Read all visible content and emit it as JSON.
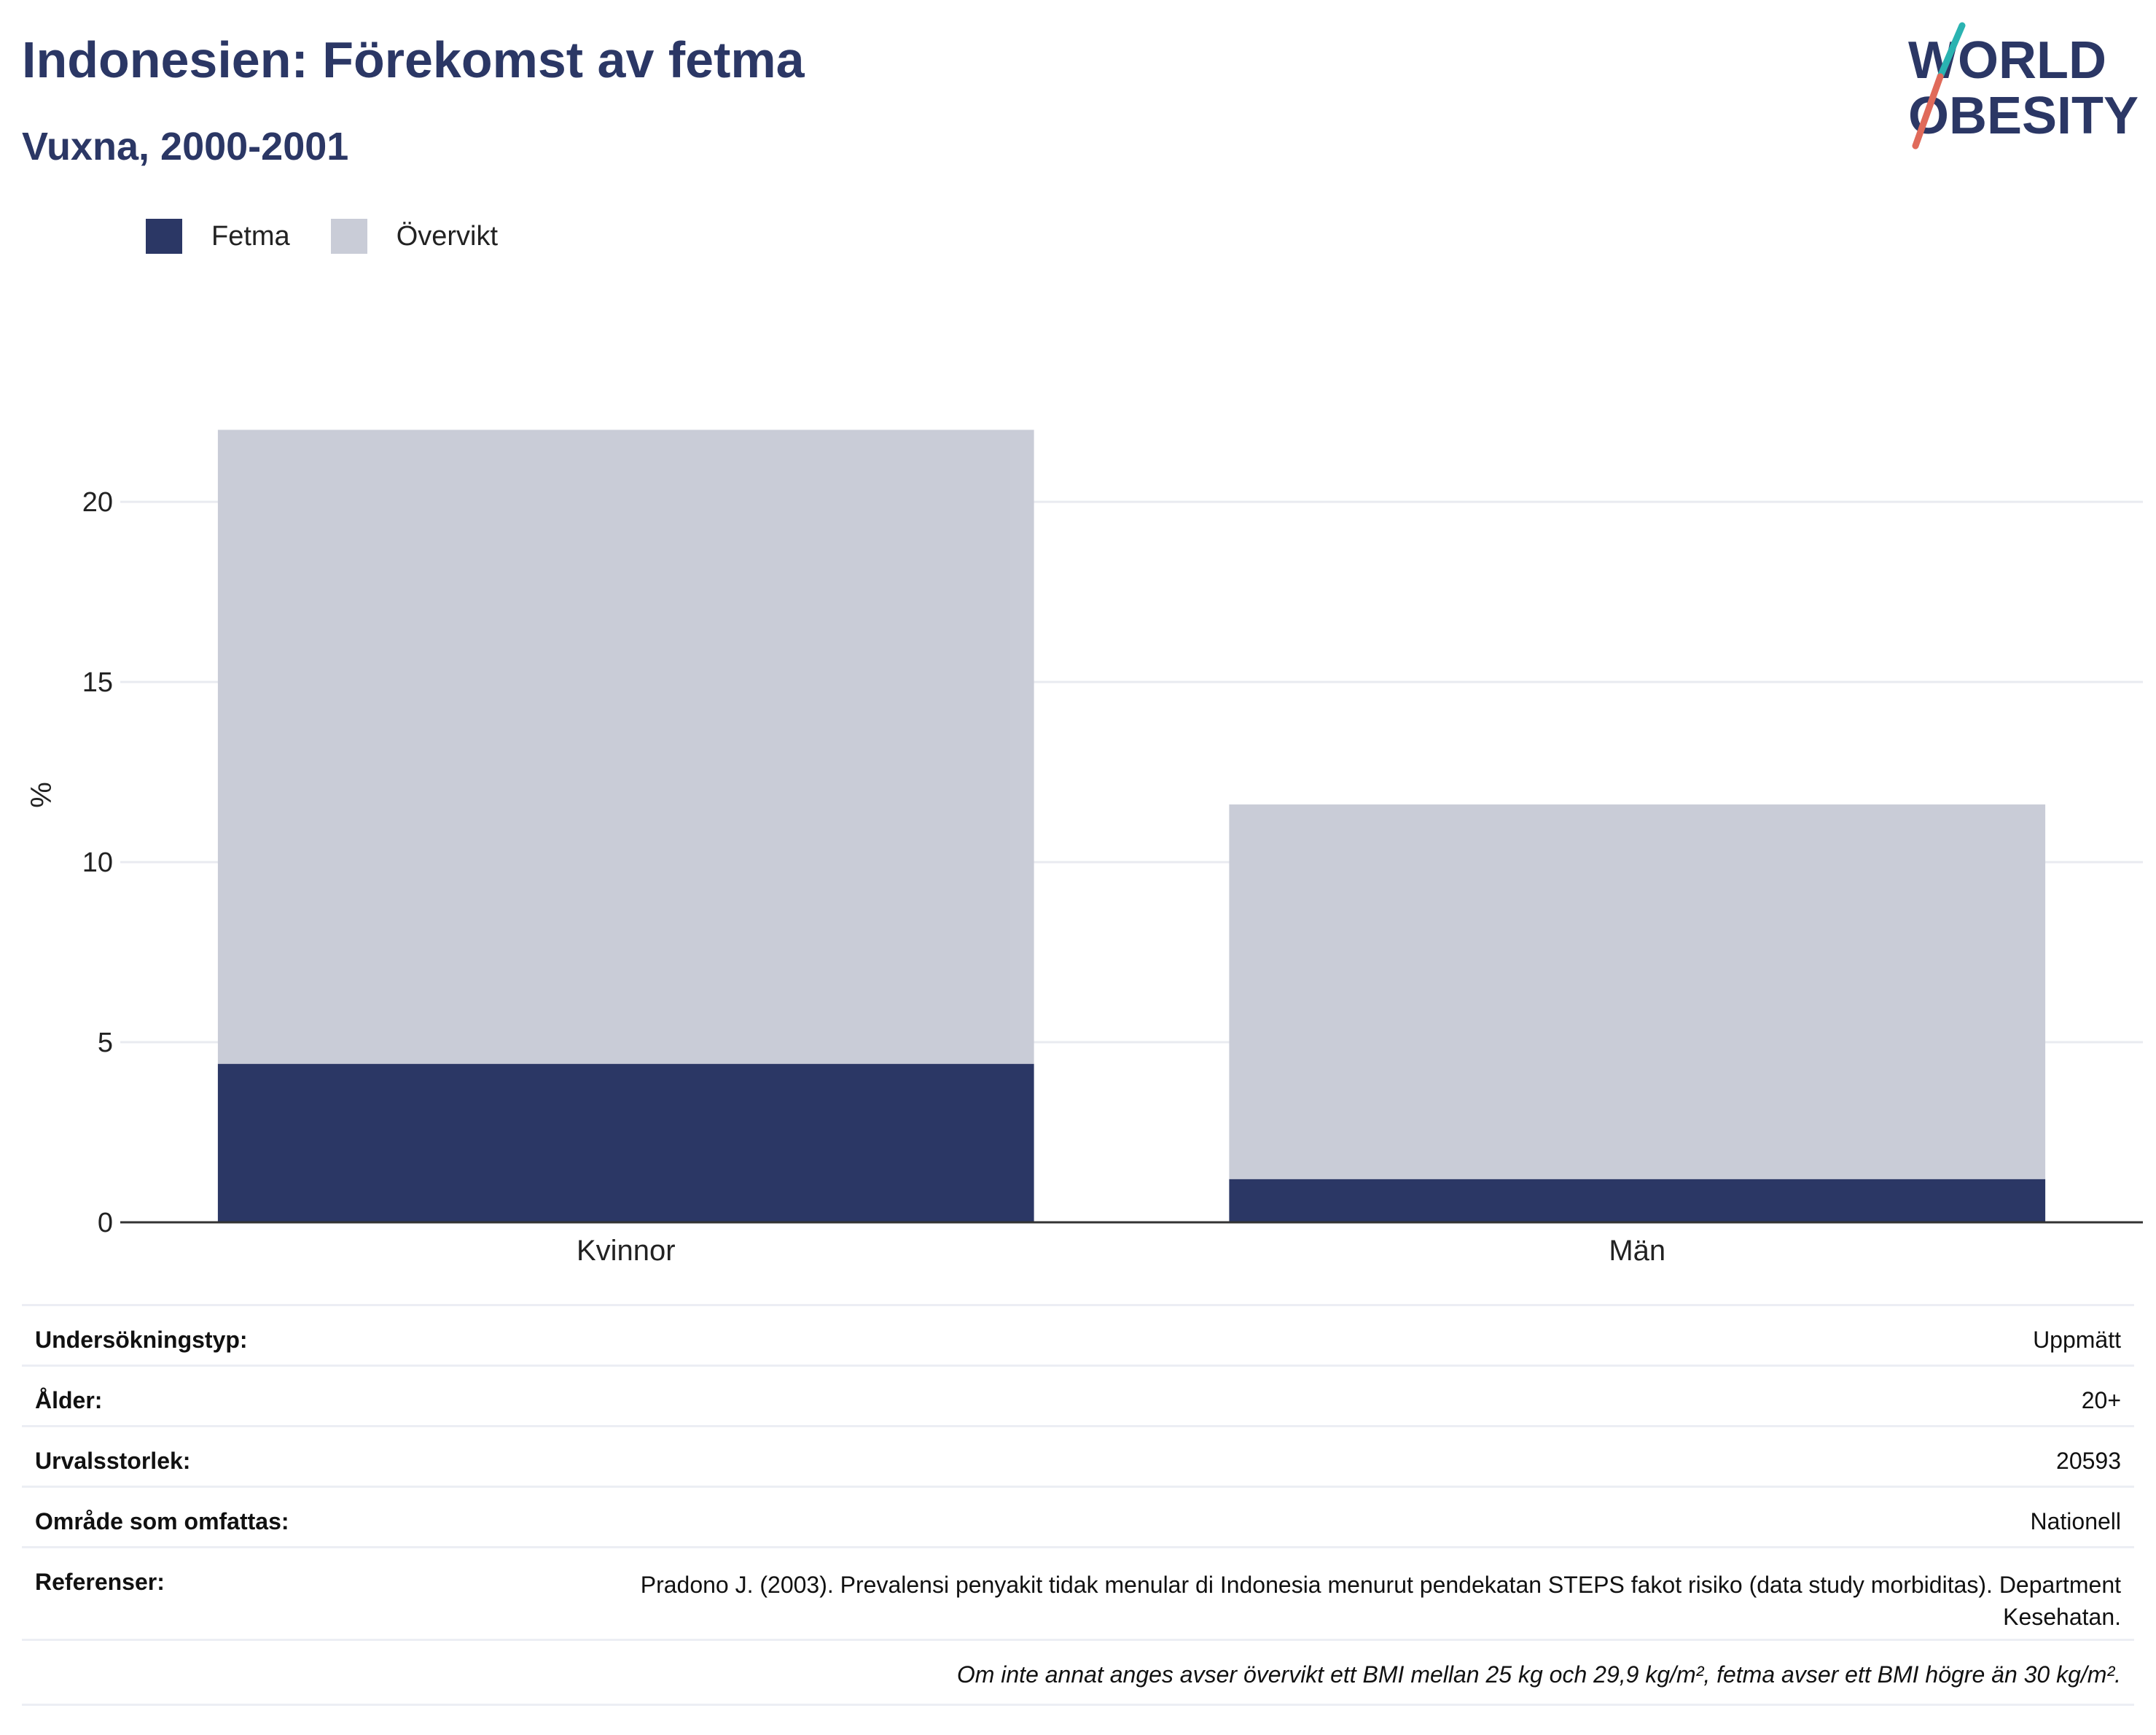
{
  "header": {
    "title": "Indonesien: Förekomst av fetma",
    "subtitle": "Vuxna, 2000-2001"
  },
  "logo": {
    "line1": "WORLD",
    "line2": "OBESITY",
    "accent_colors": [
      "#2ab3b1",
      "#e06a5a"
    ]
  },
  "colors": {
    "fetma": "#2b3765",
    "overvikt": "#c9ccd7",
    "grid": "#e9ebf0",
    "axis": "#333333"
  },
  "chart_data": {
    "type": "bar",
    "stacked": true,
    "categories": [
      "Kvinnor",
      "Män"
    ],
    "series": [
      {
        "name": "Fetma",
        "values": [
          4.4,
          1.2
        ]
      },
      {
        "name": "Övervikt",
        "values": [
          17.6,
          10.4
        ]
      }
    ],
    "xlabel": "",
    "ylabel": "%",
    "ylim": [
      0,
      23
    ],
    "yticks": [
      0,
      5,
      10,
      15,
      20
    ],
    "grid": true,
    "legend_position": "top-left"
  },
  "info": {
    "rows": [
      {
        "label": "Undersökningstyp:",
        "value": "Uppmätt"
      },
      {
        "label": "Ålder:",
        "value": "20+"
      },
      {
        "label": "Urvalsstorlek:",
        "value": "20593"
      },
      {
        "label": "Område som omfattas:",
        "value": "Nationell"
      },
      {
        "label": "Referenser:",
        "value": "Pradono J. (2003). Prevalensi penyakit tidak menular di Indonesia menurut pendekatan STEPS fakot risiko (data study morbiditas). Department Kesehatan."
      }
    ],
    "note": "Om inte annat anges avser övervikt ett BMI mellan 25 kg och 29,9 kg/m², fetma avser ett BMI högre än 30 kg/m²."
  }
}
